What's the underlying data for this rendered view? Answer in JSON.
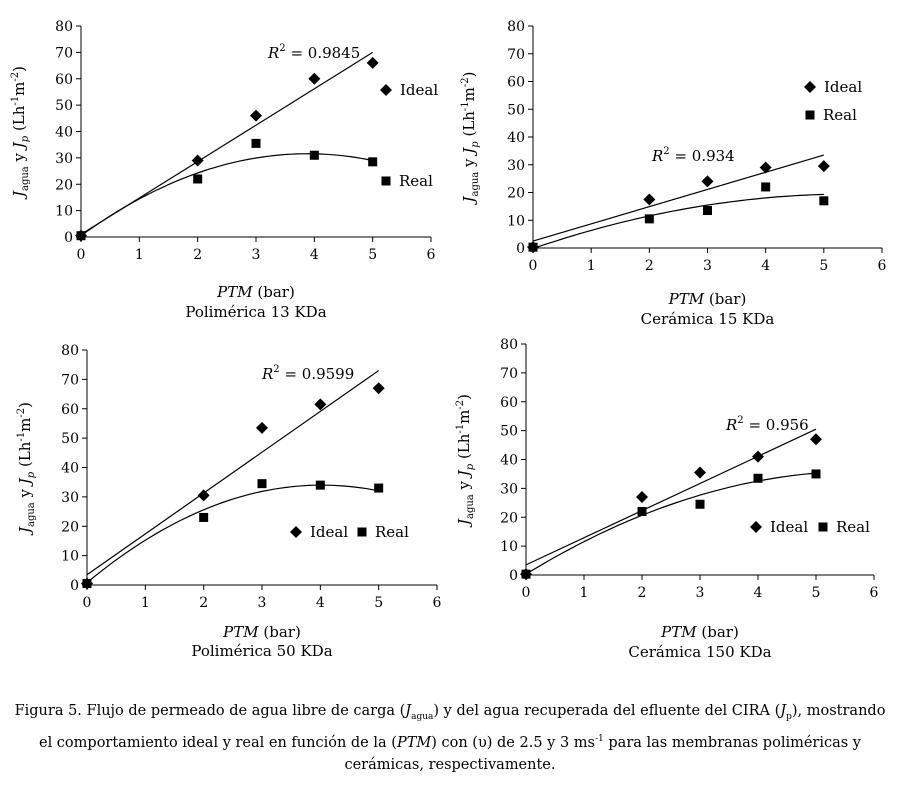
{
  "chart_data": [
    {
      "type": "scatter",
      "panel": "top-left",
      "subtitle": "Polimérica 13 KDa",
      "xlabel_italic": "PTM",
      "xlabel_unit": "(bar)",
      "ylabel": "J_agua y J_p (Lh^-1 m^-2)",
      "xlim": [
        0,
        6
      ],
      "ylim": [
        0,
        80
      ],
      "xticks": [
        "0",
        "1",
        "2",
        "3",
        "4",
        "5",
        "6"
      ],
      "yticks": [
        "0",
        "10",
        "20",
        "30",
        "40",
        "50",
        "60",
        "70",
        "80"
      ],
      "r2_label": "= 0.9845",
      "legend_placement": "right-beside-series",
      "series": [
        {
          "name": "Ideal",
          "marker": "diamond",
          "x": [
            0,
            2,
            3,
            4,
            5
          ],
          "y": [
            0.5,
            29,
            46,
            60,
            66
          ]
        },
        {
          "name": "Real",
          "marker": "square",
          "x": [
            0,
            2,
            3,
            4,
            5
          ],
          "y": [
            0.5,
            22,
            35.5,
            31,
            28.5
          ]
        }
      ],
      "fits": [
        {
          "series": "Ideal",
          "kind": "linear",
          "x": [
            0,
            5
          ],
          "y": [
            1,
            70
          ]
        },
        {
          "series": "Real",
          "kind": "polynomial",
          "coeffs": [
            0.5,
            16.0,
            -2.06
          ]
        }
      ]
    },
    {
      "type": "scatter",
      "panel": "top-right",
      "subtitle": "Cerámica 15 KDa",
      "xlabel_italic": "PTM",
      "xlabel_unit": "(bar)",
      "ylabel": "J_agua y J_p (Lh^-1 m^-2)",
      "xlim": [
        0,
        6
      ],
      "ylim": [
        0,
        80
      ],
      "xticks": [
        "0",
        "1",
        "2",
        "3",
        "4",
        "5",
        "6"
      ],
      "yticks": [
        "0",
        "10",
        "20",
        "30",
        "40",
        "50",
        "60",
        "70",
        "80"
      ],
      "r2_label": "= 0.934",
      "legend_placement": "top-right",
      "series": [
        {
          "name": "Ideal",
          "marker": "diamond",
          "x": [
            0,
            2,
            3,
            4,
            5
          ],
          "y": [
            0.3,
            17.5,
            24,
            29,
            29.5
          ]
        },
        {
          "name": "Real",
          "marker": "square",
          "x": [
            0,
            2,
            3,
            4,
            5
          ],
          "y": [
            0.3,
            10.5,
            13.5,
            22,
            17
          ]
        }
      ],
      "fits": [
        {
          "series": "Ideal",
          "kind": "linear",
          "x": [
            0,
            5
          ],
          "y": [
            2.5,
            33.5
          ]
        },
        {
          "series": "Real",
          "kind": "polynomial",
          "coeffs": [
            -0.2,
            7.2,
            -0.66
          ]
        }
      ]
    },
    {
      "type": "scatter",
      "panel": "bottom-left",
      "subtitle": "Polimérica 50 KDa",
      "xlabel_italic": "PTM",
      "xlabel_unit": "(bar)",
      "ylabel": "J_agua y J_p (Lh^-1 m^-2)",
      "xlim": [
        0,
        6
      ],
      "ylim": [
        0,
        80
      ],
      "xticks": [
        "0",
        "1",
        "2",
        "3",
        "4",
        "5",
        "6"
      ],
      "yticks": [
        "0",
        "10",
        "20",
        "30",
        "40",
        "50",
        "60",
        "70",
        "80"
      ],
      "r2_label": "= 0.9599",
      "legend_placement": "bottom-right",
      "series": [
        {
          "name": "Ideal",
          "marker": "diamond",
          "x": [
            0,
            2,
            3,
            4,
            5
          ],
          "y": [
            0.5,
            30.5,
            53.5,
            61.5,
            67
          ]
        },
        {
          "name": "Real",
          "marker": "square",
          "x": [
            0,
            2,
            3,
            4,
            5
          ],
          "y": [
            0.5,
            23,
            34.5,
            34,
            33
          ]
        }
      ],
      "fits": [
        {
          "series": "Ideal",
          "kind": "linear",
          "x": [
            0,
            5
          ],
          "y": [
            3.5,
            73
          ]
        },
        {
          "series": "Real",
          "kind": "polynomial",
          "coeffs": [
            0.8,
            16.5,
            -2.05
          ]
        }
      ]
    },
    {
      "type": "scatter",
      "panel": "bottom-right",
      "subtitle": "Cerámica 150 KDa",
      "xlabel_italic": "PTM",
      "xlabel_unit": "(bar)",
      "ylabel": "J_agua y J_p (Lh^-1 m^-2)",
      "xlim": [
        0,
        6
      ],
      "ylim": [
        0,
        80
      ],
      "xticks": [
        "0",
        "1",
        "2",
        "3",
        "4",
        "5",
        "6"
      ],
      "yticks": [
        "0",
        "10",
        "20",
        "30",
        "40",
        "50",
        "60",
        "70",
        "80"
      ],
      "r2_label": "= 0.956",
      "legend_placement": "bottom-right",
      "series": [
        {
          "name": "Ideal",
          "marker": "diamond",
          "x": [
            0,
            2,
            3,
            4,
            5
          ],
          "y": [
            0.3,
            27,
            35.5,
            41,
            47
          ]
        },
        {
          "name": "Real",
          "marker": "square",
          "x": [
            0,
            2,
            3,
            4,
            5
          ],
          "y": [
            0.3,
            22,
            24.5,
            33.5,
            35
          ]
        }
      ],
      "fits": [
        {
          "series": "Ideal",
          "kind": "linear",
          "x": [
            0,
            5
          ],
          "y": [
            3.5,
            50.5
          ]
        },
        {
          "series": "Real",
          "kind": "polynomial",
          "coeffs": [
            0.3,
            12.3,
            -1.06
          ]
        }
      ]
    }
  ],
  "caption": {
    "part1": "Figura 5. Flujo de permeado de agua libre de carga (",
    "j1": "J",
    "j1_sub": "agua",
    "part2": ") y del agua recuperada del efluente del CIRA (",
    "j2": "J",
    "j2_sub": "p",
    "part3": "), mostrando el comportamiento ideal y real en función de la (",
    "ptm": "PTM",
    "part4": ") con (υ) de 2.5 y 3 ms",
    "exp": "-1",
    "part5": " para las membranas poliméricas y cerámicas, respectivamente."
  },
  "colors": {
    "ink": "#000000",
    "background": "#ffffff"
  }
}
